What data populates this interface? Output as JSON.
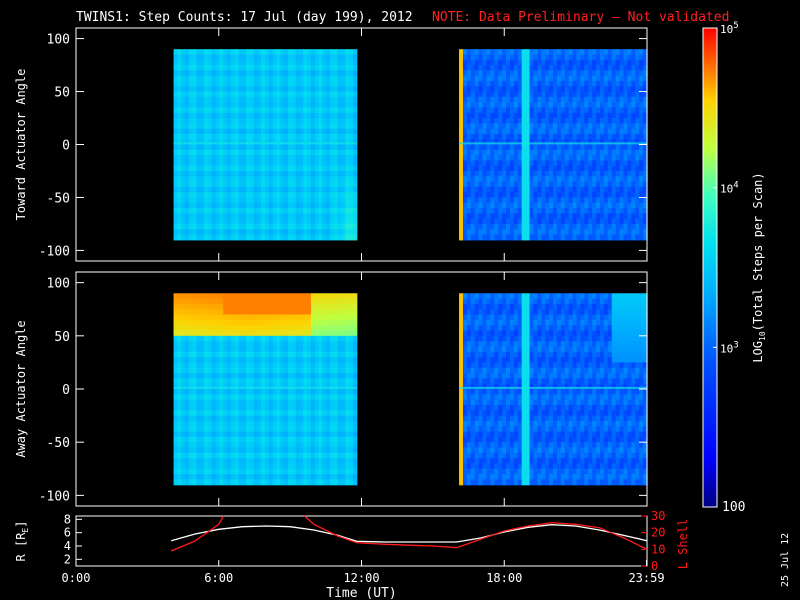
{
  "header": {
    "title": "TWINS1: Step Counts: 17 Jul (day 199), 2012",
    "note": "NOTE: Data Preliminary — Not validated",
    "title_color": "#ffffff",
    "note_color": "#ff2020"
  },
  "footer": {
    "date_stamp": "25 Jul 12"
  },
  "chart_data": [
    {
      "type": "heatmap",
      "panel": "top",
      "ylabel": "Toward Actuator Angle",
      "ylim": [
        -110,
        110
      ],
      "yticks": [
        "100",
        "50",
        "0",
        "-50",
        "-100"
      ],
      "ytick_values": [
        100,
        50,
        0,
        -50,
        -100
      ],
      "xlim_hours": [
        0,
        24
      ],
      "data_blocks": [
        {
          "t_start_hours": 4.1,
          "t_end_hours": 11.8,
          "angle_range": [
            -90,
            90
          ],
          "description": "mostly ~1e3 counts, rising toward -90 deg near 11:30"
        },
        {
          "t_start_hours": 16.1,
          "t_end_hours": 24.0,
          "angle_range": [
            -90,
            90
          ],
          "description": "~6e2-1e3 counts, bright edge at 16:00 and 18:00"
        }
      ],
      "colors": {
        "background": "#000000",
        "frame": "#ffffff"
      }
    },
    {
      "type": "heatmap",
      "panel": "bottom",
      "ylabel": "Away Actuator Angle",
      "ylim": [
        -110,
        110
      ],
      "yticks": [
        "100",
        "50",
        "0",
        "-50",
        "-100"
      ],
      "ytick_values": [
        100,
        50,
        0,
        -50,
        -100
      ],
      "xlim_hours": [
        0,
        24
      ],
      "data_blocks": [
        {
          "t_start_hours": 4.1,
          "t_end_hours": 11.8,
          "angle_range": [
            -90,
            90
          ],
          "description": "enhanced ~1e4 counts near 60-90 deg from 04:00 to 10:00"
        },
        {
          "t_start_hours": 16.1,
          "t_end_hours": 24.0,
          "angle_range": [
            -90,
            90
          ],
          "description": "~6e2-1e3 counts"
        }
      ]
    },
    {
      "type": "line",
      "panel": "orbit",
      "xlabel": "Time (UT)",
      "ylabel_left": "R [R",
      "ylabel_left_sub": "E",
      "ylabel_left_end": "]",
      "ylabel_right": "L Shell",
      "x_ticks": [
        "0:00",
        "6:00",
        "12:00",
        "18:00",
        "23:59"
      ],
      "x_tick_hours": [
        0,
        6,
        12,
        18,
        23.98
      ],
      "ylim_left": [
        1,
        8.5
      ],
      "yticks_left": [
        "8",
        "6",
        "4",
        "2"
      ],
      "ytick_values_left": [
        8,
        6,
        4,
        2
      ],
      "ylim_right": [
        0,
        30
      ],
      "yticks_right": [
        "30",
        "20",
        "10",
        "0"
      ],
      "ytick_values_right": [
        30,
        20,
        10,
        0
      ],
      "series": [
        {
          "name": "R",
          "axis": "left",
          "color": "#ffffff",
          "x": [
            4.0,
            5.0,
            6.0,
            7.0,
            8.0,
            9.0,
            10.0,
            11.0,
            11.8,
            13.0,
            14.0,
            15.0,
            16.0,
            17.0,
            18.0,
            19.0,
            20.0,
            21.0,
            22.0,
            23.0,
            24.0
          ],
          "y": [
            4.8,
            5.8,
            6.5,
            6.9,
            7.0,
            6.9,
            6.4,
            5.6,
            4.7,
            4.6,
            4.6,
            4.6,
            4.6,
            5.2,
            6.1,
            6.8,
            7.2,
            7.0,
            6.4,
            5.6,
            4.8
          ]
        },
        {
          "name": "L Shell",
          "axis": "right",
          "color": "#ff1a1a",
          "segments": [
            {
              "x": [
                4.0,
                5.0,
                6.0,
                6.2
              ],
              "y": [
                9,
                15,
                25,
                30
              ]
            },
            {
              "x": [
                9.6,
                10.0,
                11.0,
                11.8,
                13.0,
                14.0,
                15.0,
                16.0,
                17.0,
                18.0,
                19.0,
                20.0,
                21.0,
                22.0,
                23.0,
                24.0
              ],
              "y": [
                30,
                25,
                18,
                14,
                13,
                12.5,
                12,
                11,
                16,
                21,
                24,
                26,
                25,
                23,
                17,
                10
              ]
            }
          ]
        }
      ]
    },
    {
      "type": "heatmap",
      "panel": "colorbar",
      "label": "LOG",
      "label_sub": "10",
      "label_end": "(Total Steps per Scan)",
      "range": [
        100,
        100000
      ],
      "scale": "log",
      "ticks": [
        {
          "base": "10",
          "exp": "5",
          "value": 100000
        },
        {
          "base": "10",
          "exp": "4",
          "value": 10000
        },
        {
          "base": "10",
          "exp": "3",
          "value": 1000
        },
        {
          "plain": "100",
          "value": 100
        }
      ],
      "colormap": [
        "#000090",
        "#0000ff",
        "#0060ff",
        "#00c0ff",
        "#40ffe0",
        "#c0ff40",
        "#ffff00",
        "#ff8000",
        "#ff0000"
      ]
    }
  ]
}
